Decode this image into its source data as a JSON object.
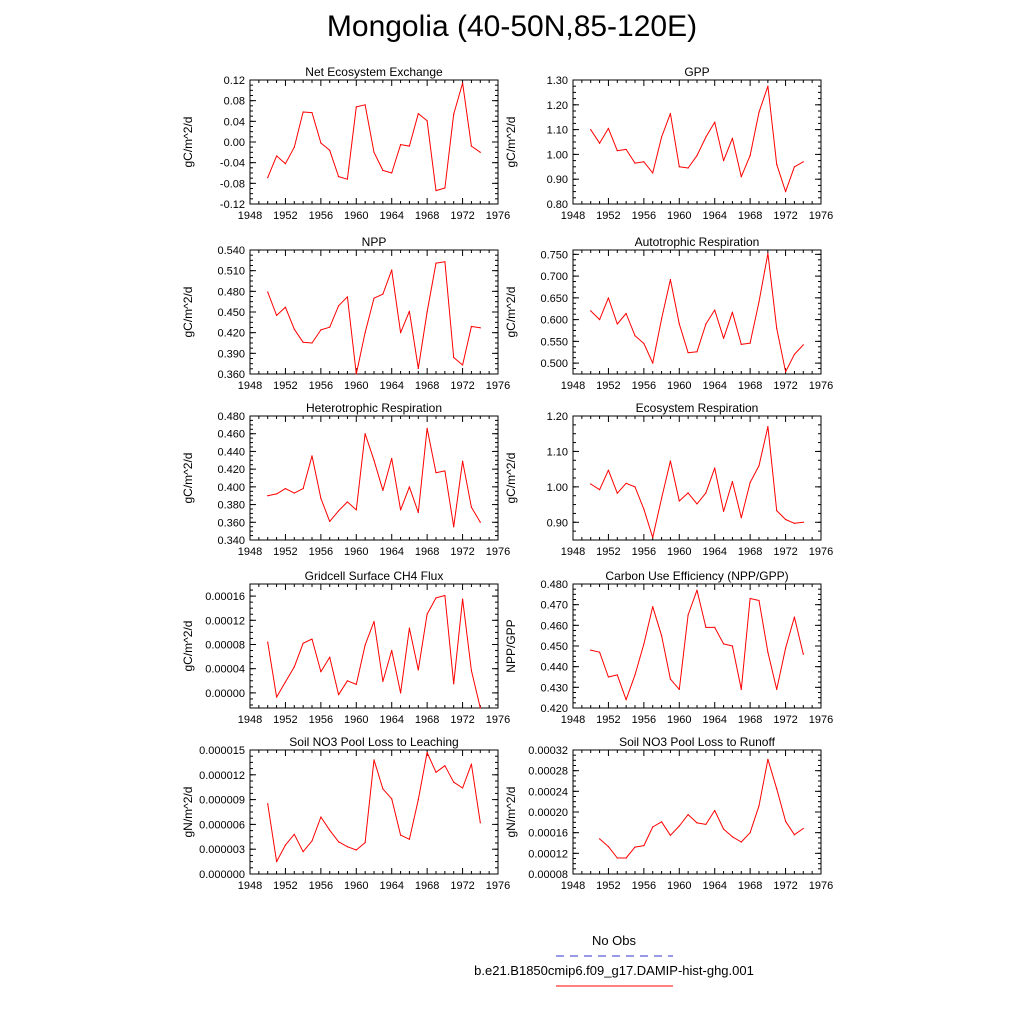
{
  "title": "Mongolia (40-50N,85-120E)",
  "colors": {
    "series": "#ff0000",
    "obs": "#3333cc",
    "axis": "#000000"
  },
  "legend": [
    {
      "label": "No Obs",
      "color": "#3333cc",
      "style": "dashed"
    },
    {
      "label": "b.e21.B1850cmip6.f09_g17.DAMIP-hist-ghg.001",
      "color": "#ff0000",
      "style": "solid"
    }
  ],
  "chart_data": [
    {
      "type": "line",
      "title": "Net Ecosystem Exchange",
      "ylabel": "gC/m^2/d",
      "xlim": [
        1948,
        1976
      ],
      "xticks": [
        "1948",
        "1952",
        "1956",
        "1960",
        "1964",
        "1968",
        "1972",
        "1976"
      ],
      "ylim": [
        -0.12,
        0.12
      ],
      "yticks": [
        "-0.12",
        "-0.08",
        "-0.04",
        "0.00",
        "0.04",
        "0.08",
        "0.12"
      ],
      "x": [
        1950,
        1951,
        1952,
        1953,
        1954,
        1955,
        1956,
        1957,
        1958,
        1959,
        1960,
        1961,
        1962,
        1963,
        1964,
        1965,
        1966,
        1967,
        1968,
        1969,
        1970,
        1971,
        1972,
        1973,
        1974
      ],
      "series": [
        {
          "values": [
            -0.069,
            -0.027,
            -0.042,
            -0.01,
            0.058,
            0.057,
            -0.002,
            -0.016,
            -0.067,
            -0.072,
            0.068,
            0.072,
            -0.02,
            -0.055,
            -0.06,
            -0.005,
            -0.008,
            0.055,
            0.041,
            -0.094,
            -0.089,
            0.054,
            0.114,
            -0.008,
            -0.02
          ]
        }
      ]
    },
    {
      "type": "line",
      "title": "GPP",
      "ylabel": "gC/m^2/d",
      "xlim": [
        1948,
        1976
      ],
      "xticks": [
        "1948",
        "1952",
        "1956",
        "1960",
        "1964",
        "1968",
        "1972",
        "1976"
      ],
      "ylim": [
        0.8,
        1.3
      ],
      "yticks": [
        "0.80",
        "0.90",
        "1.00",
        "1.10",
        "1.20",
        "1.30"
      ],
      "x": [
        1950,
        1951,
        1952,
        1953,
        1954,
        1955,
        1956,
        1957,
        1958,
        1959,
        1960,
        1961,
        1962,
        1963,
        1964,
        1965,
        1966,
        1967,
        1968,
        1969,
        1970,
        1971,
        1972,
        1973,
        1974
      ],
      "series": [
        {
          "values": [
            1.1,
            1.045,
            1.105,
            1.015,
            1.02,
            0.965,
            0.97,
            0.925,
            1.07,
            1.165,
            0.95,
            0.945,
            0.995,
            1.07,
            1.13,
            0.975,
            1.065,
            0.91,
            0.995,
            1.17,
            1.275,
            0.96,
            0.85,
            0.95,
            0.97
          ]
        }
      ]
    },
    {
      "type": "line",
      "title": "NPP",
      "ylabel": "gC/m^2/d",
      "xlim": [
        1948,
        1976
      ],
      "xticks": [
        "1948",
        "1952",
        "1956",
        "1960",
        "1964",
        "1968",
        "1972",
        "1976"
      ],
      "ylim": [
        0.36,
        0.54
      ],
      "yticks": [
        "0.360",
        "0.390",
        "0.420",
        "0.450",
        "0.480",
        "0.510",
        "0.540"
      ],
      "x": [
        1950,
        1951,
        1952,
        1953,
        1954,
        1955,
        1956,
        1957,
        1958,
        1959,
        1960,
        1961,
        1962,
        1963,
        1964,
        1965,
        1966,
        1967,
        1968,
        1969,
        1970,
        1971,
        1972,
        1973,
        1974
      ],
      "series": [
        {
          "values": [
            0.479,
            0.445,
            0.457,
            0.425,
            0.406,
            0.405,
            0.424,
            0.428,
            0.459,
            0.472,
            0.36,
            0.42,
            0.47,
            0.476,
            0.511,
            0.42,
            0.451,
            0.368,
            0.45,
            0.521,
            0.523,
            0.384,
            0.373,
            0.429,
            0.427
          ]
        }
      ]
    },
    {
      "type": "line",
      "title": "Autotrophic Respiration",
      "ylabel": "gC/m^2/d",
      "xlim": [
        1948,
        1976
      ],
      "xticks": [
        "1948",
        "1952",
        "1956",
        "1960",
        "1964",
        "1968",
        "1972",
        "1976"
      ],
      "ylim": [
        0.475,
        0.76
      ],
      "yticks": [
        "0.500",
        "0.550",
        "0.600",
        "0.650",
        "0.700",
        "0.750"
      ],
      "x": [
        1950,
        1951,
        1952,
        1953,
        1954,
        1955,
        1956,
        1957,
        1958,
        1959,
        1960,
        1961,
        1962,
        1963,
        1964,
        1965,
        1966,
        1967,
        1968,
        1969,
        1970,
        1971,
        1972,
        1973,
        1974
      ],
      "series": [
        {
          "values": [
            0.62,
            0.6,
            0.65,
            0.59,
            0.614,
            0.563,
            0.545,
            0.5,
            0.602,
            0.692,
            0.59,
            0.524,
            0.526,
            0.59,
            0.622,
            0.557,
            0.617,
            0.543,
            0.546,
            0.641,
            0.752,
            0.58,
            0.48,
            0.52,
            0.542
          ]
        }
      ]
    },
    {
      "type": "line",
      "title": "Heterotrophic Respiration",
      "ylabel": "gC/m^2/d",
      "xlim": [
        1948,
        1976
      ],
      "xticks": [
        "1948",
        "1952",
        "1956",
        "1960",
        "1964",
        "1968",
        "1972",
        "1976"
      ],
      "ylim": [
        0.34,
        0.48
      ],
      "yticks": [
        "0.340",
        "0.360",
        "0.380",
        "0.400",
        "0.420",
        "0.440",
        "0.460",
        "0.480"
      ],
      "x": [
        1950,
        1951,
        1952,
        1953,
        1954,
        1955,
        1956,
        1957,
        1958,
        1959,
        1960,
        1961,
        1962,
        1963,
        1964,
        1965,
        1966,
        1967,
        1968,
        1969,
        1970,
        1971,
        1972,
        1973,
        1974
      ],
      "series": [
        {
          "values": [
            0.39,
            0.392,
            0.398,
            0.393,
            0.398,
            0.435,
            0.387,
            0.361,
            0.373,
            0.383,
            0.374,
            0.46,
            0.43,
            0.396,
            0.432,
            0.374,
            0.4,
            0.371,
            0.466,
            0.416,
            0.418,
            0.355,
            0.429,
            0.377,
            0.36
          ]
        }
      ]
    },
    {
      "type": "line",
      "title": "Ecosystem Respiration",
      "ylabel": "gC/m^2/d",
      "xlim": [
        1948,
        1976
      ],
      "xticks": [
        "1948",
        "1952",
        "1956",
        "1960",
        "1964",
        "1968",
        "1972",
        "1976"
      ],
      "ylim": [
        0.85,
        1.2
      ],
      "yticks": [
        "0.90",
        "1.00",
        "1.10",
        "1.20"
      ],
      "x": [
        1950,
        1951,
        1952,
        1953,
        1954,
        1955,
        1956,
        1957,
        1958,
        1959,
        1960,
        1961,
        1962,
        1963,
        1964,
        1965,
        1966,
        1967,
        1968,
        1969,
        1970,
        1971,
        1972,
        1973,
        1974
      ],
      "series": [
        {
          "values": [
            1.008,
            0.992,
            1.047,
            0.982,
            1.01,
            1.0,
            0.937,
            0.857,
            0.968,
            1.073,
            0.96,
            0.983,
            0.952,
            0.983,
            1.053,
            0.931,
            1.015,
            0.913,
            1.012,
            1.06,
            1.17,
            0.933,
            0.908,
            0.897,
            0.9
          ]
        }
      ]
    },
    {
      "type": "line",
      "title": "Gridcell Surface CH4 Flux",
      "ylabel": "gC/m^2/d",
      "xlim": [
        1948,
        1976
      ],
      "xticks": [
        "1948",
        "1952",
        "1956",
        "1960",
        "1964",
        "1968",
        "1972",
        "1976"
      ],
      "ylim": [
        -2.5e-05,
        0.00018
      ],
      "yticks": [
        "0.00000",
        "0.00004",
        "0.00008",
        "0.00012",
        "0.00016"
      ],
      "x": [
        1950,
        1951,
        1952,
        1953,
        1954,
        1955,
        1956,
        1957,
        1958,
        1959,
        1960,
        1961,
        1962,
        1963,
        1964,
        1965,
        1966,
        1967,
        1968,
        1969,
        1970,
        1971,
        1972,
        1973,
        1974
      ],
      "series": [
        {
          "values": [
            8.4e-05,
            -7e-06,
            1.8e-05,
            4.3e-05,
            8.2e-05,
            8.9e-05,
            3.5e-05,
            5.9e-05,
            -3e-06,
            2e-05,
            1.4e-05,
            7.9e-05,
            0.000118,
            1.9e-05,
            7e-05,
            0.0,
            0.000107,
            3.8e-05,
            0.00013,
            0.000157,
            0.000161,
            1.5e-05,
            0.000155,
            3.7e-05,
            -2.5e-05
          ]
        }
      ]
    },
    {
      "type": "line",
      "title": "Carbon Use Efficiency (NPP/GPP)",
      "ylabel": "NPP/GPP",
      "xlim": [
        1948,
        1976
      ],
      "xticks": [
        "1948",
        "1952",
        "1956",
        "1960",
        "1964",
        "1968",
        "1972",
        "1976"
      ],
      "ylim": [
        0.42,
        0.48
      ],
      "yticks": [
        "0.420",
        "0.430",
        "0.440",
        "0.450",
        "0.460",
        "0.470",
        "0.480"
      ],
      "x": [
        1950,
        1951,
        1952,
        1953,
        1954,
        1955,
        1956,
        1957,
        1958,
        1959,
        1960,
        1961,
        1962,
        1963,
        1964,
        1965,
        1966,
        1967,
        1968,
        1969,
        1970,
        1971,
        1972,
        1973,
        1974
      ],
      "series": [
        {
          "values": [
            0.448,
            0.447,
            0.435,
            0.436,
            0.424,
            0.436,
            0.451,
            0.469,
            0.455,
            0.434,
            0.429,
            0.465,
            0.477,
            0.459,
            0.459,
            0.451,
            0.45,
            0.429,
            0.473,
            0.472,
            0.447,
            0.429,
            0.449,
            0.464,
            0.446
          ]
        }
      ]
    },
    {
      "type": "line",
      "title": "Soil NO3 Pool Loss to Leaching",
      "ylabel": "gN/m^2/d",
      "xlim": [
        1948,
        1976
      ],
      "xticks": [
        "1948",
        "1952",
        "1956",
        "1960",
        "1964",
        "1968",
        "1972",
        "1976"
      ],
      "ylim": [
        0,
        1.5e-05
      ],
      "yticks": [
        "0.000000",
        "0.000003",
        "0.000006",
        "0.000009",
        "0.000012",
        "0.000015"
      ],
      "x": [
        1950,
        1951,
        1952,
        1953,
        1954,
        1955,
        1956,
        1957,
        1958,
        1959,
        1960,
        1961,
        1962,
        1963,
        1964,
        1965,
        1966,
        1967,
        1968,
        1969,
        1970,
        1971,
        1972,
        1973,
        1974
      ],
      "series": [
        {
          "values": [
            8.5e-06,
            1.5e-06,
            3.5e-06,
            4.8e-06,
            2.7e-06,
            4e-06,
            6.9e-06,
            5.3e-06,
            3.9e-06,
            3.3e-06,
            2.9e-06,
            3.8e-06,
            1.38e-05,
            1.03e-05,
            9.1e-06,
            4.7e-06,
            4.2e-06,
            9e-06,
            1.47e-05,
            1.23e-05,
            1.31e-05,
            1.11e-05,
            1.04e-05,
            1.33e-05,
            6.2e-06
          ]
        }
      ]
    },
    {
      "type": "line",
      "title": "Soil NO3 Pool Loss to Runoff",
      "ylabel": "gN/m^2/d",
      "xlim": [
        1948,
        1976
      ],
      "xticks": [
        "1948",
        "1952",
        "1956",
        "1960",
        "1964",
        "1968",
        "1972",
        "1976"
      ],
      "ylim": [
        8e-05,
        0.00032
      ],
      "yticks": [
        "0.00008",
        "0.00012",
        "0.00016",
        "0.00020",
        "0.00024",
        "0.00028",
        "0.00032"
      ],
      "x": [
        1951,
        1952,
        1953,
        1954,
        1955,
        1956,
        1957,
        1958,
        1959,
        1960,
        1961,
        1962,
        1963,
        1964,
        1965,
        1966,
        1967,
        1968,
        1969,
        1970,
        1971,
        1972,
        1973,
        1974
      ],
      "series": [
        {
          "values": [
            0.000148,
            0.000133,
            0.000111,
            0.000111,
            0.000132,
            0.000135,
            0.000171,
            0.000181,
            0.000155,
            0.000173,
            0.000195,
            0.000179,
            0.000176,
            0.000203,
            0.000167,
            0.000152,
            0.000142,
            0.00016,
            0.000212,
            0.000302,
            0.000245,
            0.000182,
            0.000156,
            0.000168
          ]
        }
      ]
    }
  ]
}
